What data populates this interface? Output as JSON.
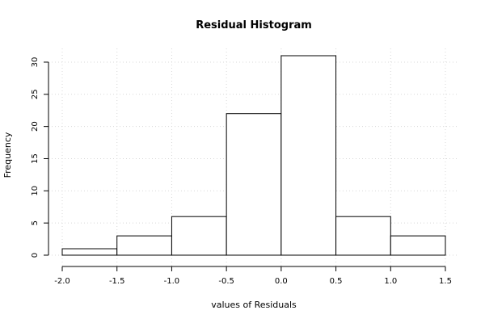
{
  "chart_data": {
    "type": "bar",
    "title": "Residual Histogram",
    "xlabel": "values of Residuals",
    "ylabel": "Frequency",
    "bins": [
      {
        "from": -2.0,
        "to": -1.5,
        "count": 1
      },
      {
        "from": -1.5,
        "to": -1.0,
        "count": 3
      },
      {
        "from": -1.0,
        "to": -0.5,
        "count": 6
      },
      {
        "from": -0.5,
        "to": 0.0,
        "count": 22
      },
      {
        "from": 0.0,
        "to": 0.5,
        "count": 31
      },
      {
        "from": 0.5,
        "to": 1.0,
        "count": 6
      },
      {
        "from": 1.0,
        "to": 1.5,
        "count": 3
      }
    ],
    "xlim": [
      -2.0,
      1.5
    ],
    "ylim": [
      0,
      31
    ],
    "xticks": [
      -2.0,
      -1.5,
      -1.0,
      -0.5,
      0.0,
      0.5,
      1.0,
      1.5
    ],
    "xtick_labels": [
      "-2.0",
      "-1.5",
      "-1.0",
      "-0.5",
      "0.0",
      "0.5",
      "1.0",
      "1.5"
    ],
    "yticks": [
      0,
      5,
      10,
      15,
      20,
      25,
      30
    ],
    "ytick_labels": [
      "0",
      "5",
      "10",
      "15",
      "20",
      "25",
      "30"
    ],
    "grid": true,
    "legend": "none"
  }
}
